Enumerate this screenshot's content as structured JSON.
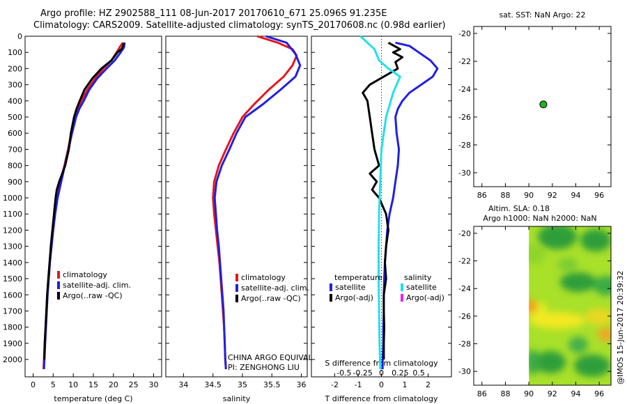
{
  "header": {
    "line1": "Argo profile: HZ 2902588_111 08-Jun-2017 20170610_671 25.096S 91.235E",
    "line2": "Climatology: CARS2009. Satellite-adjusted climatology: synTS_20170608.nc (0.98d earlier)"
  },
  "timestamp": "@IMOS 15-Jun-2017 20:39:32",
  "colors": {
    "climatology": "#e8161b",
    "satellite": "#1f1fe6",
    "argo": "#000000",
    "sal_satellite": "#22e0e8",
    "argo_adj_sal": "#ee22ee"
  },
  "chart_data": [
    {
      "type": "line",
      "id": "temperature",
      "xlabel": "temperature (deg C)",
      "ylabel": "",
      "xlim": [
        -2,
        32
      ],
      "ylim": [
        2100,
        0
      ],
      "xticks": [
        "0",
        "5",
        "10",
        "15",
        "20",
        "25",
        "30"
      ],
      "xtick_values": [
        0,
        5,
        10,
        15,
        20,
        25,
        30
      ],
      "yticks": [
        "0",
        "100",
        "200",
        "300",
        "400",
        "500",
        "600",
        "700",
        "800",
        "900",
        "1000",
        "1100",
        "1200",
        "1300",
        "1400",
        "1500",
        "1600",
        "1700",
        "1800",
        "1900",
        "2000"
      ],
      "ytick_values": [
        0,
        100,
        200,
        300,
        400,
        500,
        600,
        700,
        800,
        900,
        1000,
        1100,
        1200,
        1300,
        1400,
        1500,
        1600,
        1700,
        1800,
        1900,
        2000
      ],
      "legend": [
        "climatology",
        "satellite-adj. clim.",
        "Argo(..raw -QC)"
      ],
      "series": [
        {
          "name": "climatology",
          "color": "#e8161b",
          "points": [
            [
              22.3,
              40
            ],
            [
              21.5,
              70
            ],
            [
              20.8,
              100
            ],
            [
              19.5,
              150
            ],
            [
              17.5,
              200
            ],
            [
              15.5,
              260
            ],
            [
              13.5,
              330
            ],
            [
              12.0,
              400
            ],
            [
              11.0,
              450
            ],
            [
              10.3,
              500
            ],
            [
              9.5,
              600
            ],
            [
              8.7,
              700
            ],
            [
              7.8,
              800
            ],
            [
              6.8,
              900
            ],
            [
              6.0,
              1000
            ],
            [
              5.4,
              1100
            ],
            [
              4.9,
              1200
            ],
            [
              4.5,
              1300
            ],
            [
              4.1,
              1400
            ],
            [
              3.8,
              1500
            ],
            [
              3.5,
              1600
            ],
            [
              3.3,
              1700
            ],
            [
              3.1,
              1800
            ],
            [
              2.9,
              1900
            ],
            [
              2.7,
              2000
            ],
            [
              2.6,
              2060
            ]
          ]
        },
        {
          "name": "satellite",
          "color": "#1f1fe6",
          "points": [
            [
              22.8,
              40
            ],
            [
              22.6,
              70
            ],
            [
              21.8,
              100
            ],
            [
              20.3,
              150
            ],
            [
              18.3,
              200
            ],
            [
              16.0,
              260
            ],
            [
              14.0,
              330
            ],
            [
              12.6,
              400
            ],
            [
              11.5,
              450
            ],
            [
              10.7,
              500
            ],
            [
              9.7,
              600
            ],
            [
              8.8,
              700
            ],
            [
              7.9,
              800
            ],
            [
              7.0,
              900
            ],
            [
              6.1,
              1000
            ],
            [
              5.5,
              1100
            ],
            [
              5.0,
              1200
            ],
            [
              4.6,
              1300
            ],
            [
              4.2,
              1400
            ],
            [
              3.9,
              1500
            ],
            [
              3.6,
              1600
            ],
            [
              3.4,
              1700
            ],
            [
              3.2,
              1800
            ],
            [
              3.0,
              1900
            ],
            [
              2.8,
              2000
            ],
            [
              2.7,
              2060
            ]
          ]
        },
        {
          "name": "argo",
          "color": "#000000",
          "points": [
            [
              22.6,
              40
            ],
            [
              22.4,
              60
            ],
            [
              22.0,
              80
            ],
            [
              21.0,
              100
            ],
            [
              19.5,
              150
            ],
            [
              17.0,
              200
            ],
            [
              14.8,
              260
            ],
            [
              12.8,
              330
            ],
            [
              11.6,
              400
            ],
            [
              10.8,
              450
            ],
            [
              10.2,
              500
            ],
            [
              9.4,
              600
            ],
            [
              8.9,
              700
            ],
            [
              8.0,
              800
            ],
            [
              6.5,
              900
            ],
            [
              5.9,
              950
            ],
            [
              5.6,
              1000
            ],
            [
              5.2,
              1100
            ],
            [
              4.8,
              1200
            ],
            [
              4.4,
              1300
            ],
            [
              4.1,
              1400
            ],
            [
              3.8,
              1500
            ],
            [
              3.5,
              1600
            ],
            [
              3.3,
              1700
            ],
            [
              3.1,
              1800
            ],
            [
              2.9,
              1900
            ],
            [
              2.8,
              2000
            ]
          ]
        }
      ]
    },
    {
      "type": "line",
      "id": "salinity",
      "xlabel": "salinity",
      "xlim": [
        33.7,
        36.1
      ],
      "ylim": [
        2100,
        0
      ],
      "xticks": [
        "34",
        "34.5",
        "35",
        "35.5",
        "36"
      ],
      "xtick_values": [
        34,
        34.5,
        35,
        35.5,
        36
      ],
      "legend": [
        "climatology",
        "satellite-adj. clim.",
        "Argo(..raw -QC)"
      ],
      "annotation": [
        "CHINA ARGO EQUIVALENT",
        "PI: ZENGHONG LIU"
      ],
      "series": [
        {
          "name": "climatology",
          "color": "#e8161b",
          "points": [
            [
              35.25,
              0
            ],
            [
              35.6,
              40
            ],
            [
              35.85,
              80
            ],
            [
              35.92,
              120
            ],
            [
              35.85,
              180
            ],
            [
              35.7,
              250
            ],
            [
              35.45,
              330
            ],
            [
              35.2,
              420
            ],
            [
              35.0,
              500
            ],
            [
              34.85,
              600
            ],
            [
              34.72,
              700
            ],
            [
              34.6,
              800
            ],
            [
              34.52,
              900
            ],
            [
              34.5,
              1000
            ],
            [
              34.52,
              1100
            ],
            [
              34.55,
              1200
            ],
            [
              34.58,
              1300
            ],
            [
              34.61,
              1400
            ],
            [
              34.63,
              1500
            ],
            [
              34.65,
              1600
            ],
            [
              34.67,
              1700
            ],
            [
              34.69,
              1800
            ],
            [
              34.7,
              1900
            ],
            [
              34.71,
              2000
            ],
            [
              34.72,
              2060
            ]
          ]
        },
        {
          "name": "satellite",
          "color": "#1f1fe6",
          "points": [
            [
              35.4,
              0
            ],
            [
              35.75,
              40
            ],
            [
              35.9,
              110
            ],
            [
              35.98,
              180
            ],
            [
              35.9,
              250
            ],
            [
              35.65,
              330
            ],
            [
              35.35,
              420
            ],
            [
              35.05,
              500
            ],
            [
              34.9,
              600
            ],
            [
              34.78,
              700
            ],
            [
              34.65,
              800
            ],
            [
              34.56,
              900
            ],
            [
              34.53,
              1000
            ],
            [
              34.55,
              1100
            ],
            [
              34.57,
              1200
            ],
            [
              34.6,
              1300
            ],
            [
              34.62,
              1400
            ],
            [
              34.64,
              1500
            ],
            [
              34.66,
              1600
            ],
            [
              34.68,
              1700
            ],
            [
              34.69,
              1800
            ],
            [
              34.7,
              1900
            ],
            [
              34.71,
              2000
            ],
            [
              34.72,
              2060
            ]
          ]
        }
      ]
    },
    {
      "type": "line",
      "id": "difference",
      "xlabel": "T difference from climatology",
      "xlabel2": "S difference from climatology",
      "xlim": [
        -3,
        3
      ],
      "ylim": [
        2100,
        0
      ],
      "xticks": [
        "-2",
        "-1",
        "0",
        "1",
        "2"
      ],
      "xtick_values": [
        -2,
        -1,
        0,
        1,
        2
      ],
      "sticks": [
        "-0.5",
        "-0.25",
        "0",
        "0.25",
        "0.5"
      ],
      "stick_values": [
        -0.5,
        -0.25,
        0,
        0.25,
        0.5
      ],
      "legend_title_t": "temperature",
      "legend_title_s": "salinity",
      "legend_t": [
        "satellite",
        "Argo(-adj)"
      ],
      "legend_s": [
        "satellite",
        "Argo(-adj)"
      ],
      "series": [
        {
          "name": "T satellite",
          "color": "#1f1fe6",
          "points": [
            [
              0.6,
              40
            ],
            [
              1.2,
              60
            ],
            [
              1.6,
              100
            ],
            [
              2.1,
              150
            ],
            [
              2.4,
              200
            ],
            [
              2.2,
              250
            ],
            [
              1.7,
              300
            ],
            [
              1.2,
              350
            ],
            [
              0.9,
              400
            ],
            [
              0.7,
              450
            ],
            [
              0.6,
              500
            ],
            [
              0.65,
              600
            ],
            [
              0.75,
              700
            ],
            [
              0.7,
              800
            ],
            [
              0.6,
              900
            ],
            [
              0.5,
              1000
            ],
            [
              0.35,
              1100
            ],
            [
              0.25,
              1200
            ],
            [
              0.2,
              1300
            ],
            [
              0.15,
              1400
            ],
            [
              0.12,
              1500
            ],
            [
              0.1,
              1600
            ],
            [
              0.1,
              1700
            ],
            [
              0.08,
              1800
            ],
            [
              0.08,
              1900
            ],
            [
              0.05,
              2000
            ],
            [
              0.05,
              2060
            ]
          ]
        },
        {
          "name": "T argo",
          "color": "#000000",
          "points": [
            [
              0.3,
              40
            ],
            [
              0.8,
              80
            ],
            [
              0.5,
              100
            ],
            [
              0.9,
              130
            ],
            [
              0.6,
              160
            ],
            [
              0.7,
              200
            ],
            [
              -0.5,
              300
            ],
            [
              -0.8,
              350
            ],
            [
              -0.6,
              400
            ],
            [
              -0.5,
              500
            ],
            [
              -0.4,
              600
            ],
            [
              -0.3,
              700
            ],
            [
              -0.1,
              800
            ],
            [
              -0.5,
              850
            ],
            [
              -0.2,
              900
            ],
            [
              -0.4,
              950
            ],
            [
              -0.1,
              1000
            ],
            [
              0.2,
              1100
            ],
            [
              0.3,
              1200
            ],
            [
              0.2,
              1300
            ],
            [
              0.15,
              1400
            ],
            [
              0.2,
              1500
            ],
            [
              0.1,
              1600
            ],
            [
              0.1,
              1700
            ],
            [
              0.12,
              1800
            ],
            [
              0.1,
              1900
            ],
            [
              0.1,
              2000
            ]
          ]
        },
        {
          "name": "S satellite",
          "color": "#22e0e8",
          "points": [
            [
              -0.9,
              0
            ],
            [
              -0.6,
              40
            ],
            [
              -0.3,
              80
            ],
            [
              -0.1,
              150
            ],
            [
              0.3,
              200
            ],
            [
              0.8,
              250
            ],
            [
              0.5,
              350
            ],
            [
              0.2,
              500
            ],
            [
              0.0,
              700
            ],
            [
              -0.05,
              900
            ],
            [
              -0.1,
              1100
            ],
            [
              -0.12,
              1300
            ],
            [
              -0.12,
              1500
            ],
            [
              -0.1,
              1700
            ],
            [
              -0.08,
              1900
            ],
            [
              -0.06,
              2000
            ],
            [
              -0.05,
              2060
            ]
          ]
        }
      ]
    },
    {
      "type": "scatter",
      "id": "sst-map",
      "title": "sat. SST: NaN Argo: 22",
      "xlim": [
        85.3,
        97
      ],
      "ylim": [
        -31,
        -19.5
      ],
      "xticks": [
        "86",
        "88",
        "90",
        "92",
        "94",
        "96"
      ],
      "xtick_values": [
        86,
        88,
        90,
        92,
        94,
        96
      ],
      "yticks": [
        "-20",
        "-22",
        "-24",
        "-26",
        "-28",
        "-30"
      ],
      "ytick_values": [
        -20,
        -22,
        -24,
        -26,
        -28,
        -30
      ],
      "points": [
        [
          91.235,
          -25.096
        ]
      ]
    },
    {
      "type": "heatmap",
      "id": "sla-map",
      "title1": "Altim. SLA: 0.18",
      "title2": "Argo h1000: NaN h2000: NaN",
      "xlim": [
        85.3,
        97
      ],
      "ylim": [
        -31,
        -19.5
      ],
      "xticks": [
        "86",
        "88",
        "90",
        "92",
        "94",
        "96"
      ],
      "xtick_values": [
        86,
        88,
        90,
        92,
        94,
        96
      ],
      "yticks": [
        "-20",
        "-22",
        "-24",
        "-26",
        "-28",
        "-30"
      ],
      "ytick_values": [
        -20,
        -22,
        -24,
        -26,
        -28,
        -30
      ],
      "data_lon_range": [
        90,
        97
      ]
    }
  ]
}
